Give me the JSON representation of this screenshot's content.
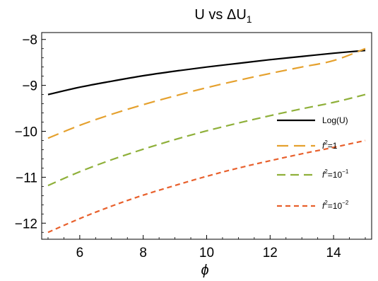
{
  "chart_data": {
    "type": "line",
    "title": "U vs ΔU₁",
    "xlabel": "ϕ",
    "ylabel": "",
    "xlim": [
      4.8,
      15.2
    ],
    "ylim": [
      -12.35,
      -7.85
    ],
    "x_ticks": [
      6,
      8,
      10,
      12,
      14
    ],
    "y_ticks": [
      -8,
      -9,
      -10,
      -11,
      -12
    ],
    "x_tick_labels": [
      "6",
      "8",
      "10",
      "12",
      "14"
    ],
    "y_tick_labels": [
      "−8",
      "−9",
      "−10",
      "−11",
      "−12"
    ],
    "legend_position": "right",
    "series": [
      {
        "name": "Log(U)",
        "color": "#000000",
        "dash": "solid",
        "x": [
          5,
          6,
          7,
          8,
          9,
          10,
          11,
          12,
          13,
          14,
          15
        ],
        "y": [
          -9.2,
          -9.04,
          -8.91,
          -8.79,
          -8.69,
          -8.6,
          -8.52,
          -8.44,
          -8.37,
          -8.3,
          -8.24
        ]
      },
      {
        "name": "f²=1",
        "legend_parts": [
          "f",
          "2",
          "=1"
        ],
        "color": "#E5A12E",
        "dash": "long",
        "x": [
          5,
          6,
          7,
          8,
          9,
          10,
          11,
          12,
          13,
          14,
          15
        ],
        "y": [
          -10.15,
          -9.87,
          -9.63,
          -9.42,
          -9.23,
          -9.05,
          -8.89,
          -8.74,
          -8.6,
          -8.46,
          -8.2
        ]
      },
      {
        "name": "f²=10⁻¹",
        "legend_parts": [
          "f",
          "2",
          "=10",
          "−1"
        ],
        "color": "#8FB03A",
        "dash": "medium",
        "x": [
          5,
          6,
          7,
          8,
          9,
          10,
          11,
          12,
          13,
          14,
          15
        ],
        "y": [
          -11.18,
          -10.88,
          -10.62,
          -10.39,
          -10.18,
          -9.99,
          -9.82,
          -9.66,
          -9.51,
          -9.37,
          -9.2
        ]
      },
      {
        "name": "f²=10⁻²",
        "legend_parts": [
          "f",
          "2",
          "=10",
          "−2"
        ],
        "color": "#E8602C",
        "dash": "short",
        "x": [
          5,
          6,
          7,
          8,
          9,
          10,
          11,
          12,
          13,
          14,
          15
        ],
        "y": [
          -12.2,
          -11.9,
          -11.63,
          -11.39,
          -11.18,
          -10.98,
          -10.8,
          -10.64,
          -10.49,
          -10.35,
          -10.2
        ]
      }
    ]
  }
}
